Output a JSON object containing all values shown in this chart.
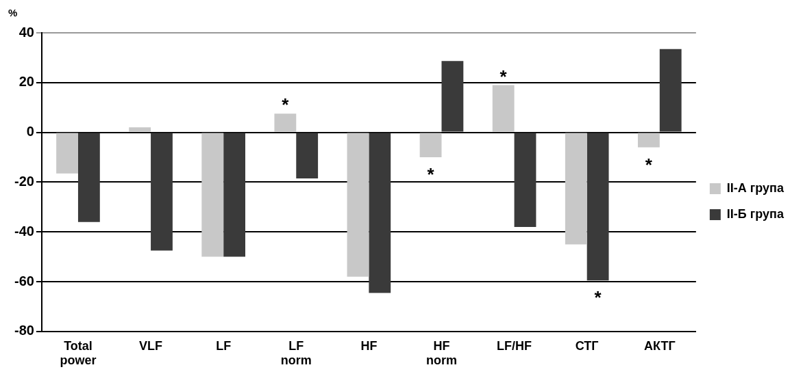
{
  "chart_data": {
    "type": "bar",
    "ylabel": "%",
    "categories": [
      "Total power",
      "VLF",
      "LF",
      "LF norm",
      "HF",
      "HF norm",
      "LF/HF",
      "СТГ",
      "АКТГ"
    ],
    "series": [
      {
        "name": "II-А група",
        "color": "#c8c8c8",
        "values": [
          -16.5,
          2,
          -50,
          7.5,
          -58,
          -10,
          19,
          -45,
          -6
        ]
      },
      {
        "name": "II-Б група",
        "color": "#3a3a3a",
        "values": [
          -36,
          -47.5,
          -50,
          -18.5,
          -64.5,
          28.7,
          -38,
          -59.5,
          33.5
        ]
      }
    ],
    "ylim": [
      -80,
      40
    ],
    "yticks": [
      -80,
      -60,
      -40,
      -20,
      0,
      20,
      40
    ],
    "grid": "y",
    "legend": "right",
    "annotations": [
      {
        "text": "*",
        "x": "LF norm",
        "y": 7.5
      },
      {
        "text": "*",
        "x": "HF norm",
        "y": -10
      },
      {
        "text": "*",
        "x": "LF/HF",
        "y": 19
      },
      {
        "text": "*",
        "x": "СТГ",
        "y": -59.5
      },
      {
        "text": "*",
        "x": "АКТГ",
        "y": -6
      }
    ]
  }
}
